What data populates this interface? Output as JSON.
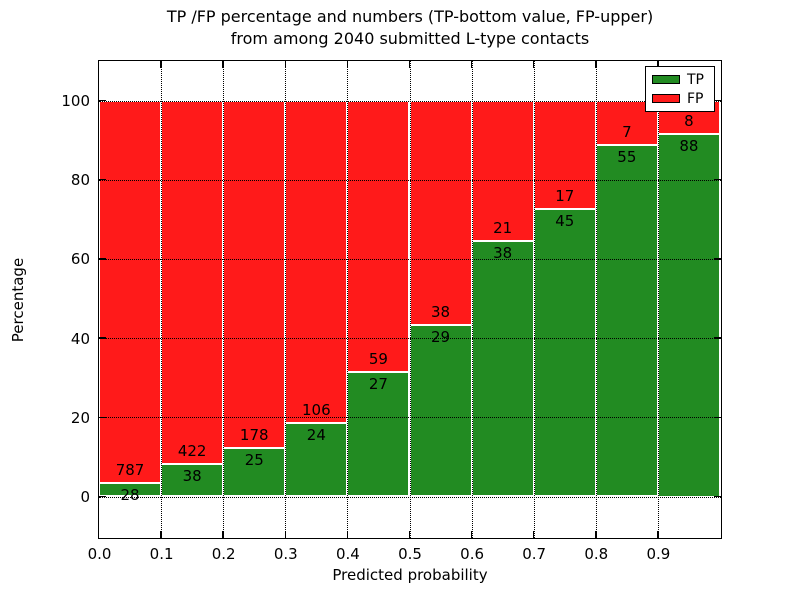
{
  "figure": {
    "title_line1": "TP /FP percentage and numbers (TP-bottom value, FP-upper)",
    "title_line2": "from among 2040 submitted L-type contacts"
  },
  "axes": {
    "x_label": "Predicted probability",
    "y_label": "Percentage",
    "x_tick_labels": [
      "0.0",
      "0.1",
      "0.2",
      "0.3",
      "0.4",
      "0.5",
      "0.6",
      "0.7",
      "0.8",
      "0.9"
    ],
    "y_tick_labels": [
      "0",
      "20",
      "40",
      "60",
      "80",
      "100"
    ]
  },
  "legend": {
    "position": "upper right",
    "items": [
      {
        "label": "TP",
        "color": "#228B22"
      },
      {
        "label": "FP",
        "color": "#FF1A1A"
      }
    ]
  },
  "chart_data": {
    "type": "bar",
    "stacked": true,
    "normalized": "each bin scaled to 100%",
    "title": "TP /FP percentage and numbers (TP-bottom value, FP-upper) from among 2040 submitted L-type contacts",
    "xlabel": "Predicted probability",
    "ylabel": "Percentage",
    "bins_start": [
      0.0,
      0.1,
      0.2,
      0.3,
      0.4,
      0.5,
      0.6,
      0.7,
      0.8,
      0.9
    ],
    "bin_width": 0.1,
    "categories": [
      "0.0-0.1",
      "0.1-0.2",
      "0.2-0.3",
      "0.3-0.4",
      "0.4-0.5",
      "0.5-0.6",
      "0.6-0.7",
      "0.7-0.8",
      "0.8-0.9",
      "0.9-1.0"
    ],
    "series": [
      {
        "name": "TP",
        "color": "#228B22",
        "values": [
          28,
          38,
          25,
          24,
          27,
          29,
          38,
          45,
          55,
          88
        ]
      },
      {
        "name": "FP",
        "color": "#FF1A1A",
        "values": [
          787,
          422,
          178,
          106,
          59,
          38,
          21,
          17,
          7,
          8
        ]
      }
    ],
    "tp_percent_of_bin": [
      3.44,
      8.26,
      12.32,
      18.46,
      31.4,
      43.28,
      64.41,
      72.58,
      88.71,
      91.67
    ],
    "total_contacts": 2040,
    "xlim": [
      0.0,
      1.0
    ],
    "ylim": [
      -10.6,
      109.6
    ],
    "xticks": [
      0.0,
      0.1,
      0.2,
      0.3,
      0.4,
      0.5,
      0.6,
      0.7,
      0.8,
      0.9
    ],
    "yticks": [
      0,
      20,
      40,
      60,
      80,
      100
    ],
    "grid": "dotted black, both axes, drawn above bars",
    "bar_edge_color": "#ffffff",
    "legend_position": "upper right"
  }
}
